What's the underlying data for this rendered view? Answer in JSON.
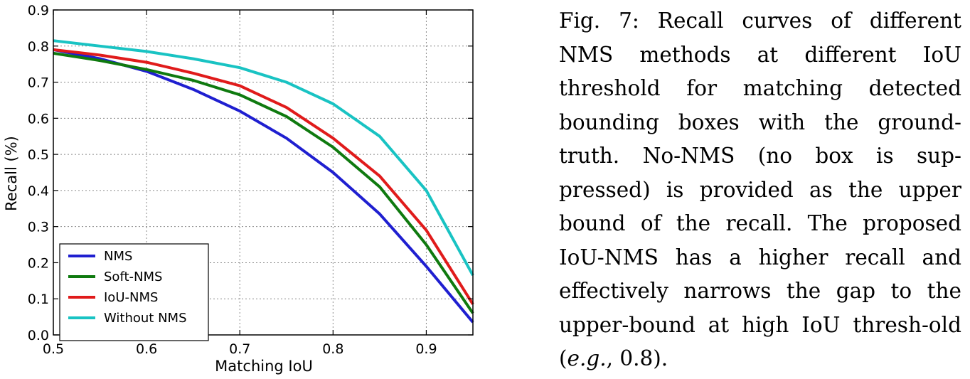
{
  "chart_data": {
    "type": "line",
    "xlabel": "Matching IoU",
    "ylabel": "Recall (%)",
    "xlim": [
      0.5,
      0.95
    ],
    "ylim": [
      0.0,
      0.9
    ],
    "grid": true,
    "legend_position": "lower-left",
    "xticks": [
      "0.5",
      "0.6",
      "0.7",
      "0.8",
      "0.9"
    ],
    "yticks": [
      "0.0",
      "0.1",
      "0.2",
      "0.3",
      "0.4",
      "0.5",
      "0.6",
      "0.7",
      "0.8",
      "0.9"
    ],
    "x": [
      0.5,
      0.55,
      0.6,
      0.65,
      0.7,
      0.75,
      0.8,
      0.85,
      0.9,
      0.95
    ],
    "series": [
      {
        "name": "NMS",
        "color": "#1f1fd0",
        "values": [
          0.79,
          0.765,
          0.73,
          0.68,
          0.62,
          0.545,
          0.45,
          0.335,
          0.19,
          0.035
        ]
      },
      {
        "name": "Soft-NMS",
        "color": "#0f7a0f",
        "values": [
          0.78,
          0.76,
          0.735,
          0.705,
          0.665,
          0.605,
          0.52,
          0.41,
          0.25,
          0.06
        ]
      },
      {
        "name": "IoU-NMS",
        "color": "#e01b1b",
        "values": [
          0.79,
          0.775,
          0.755,
          0.725,
          0.69,
          0.63,
          0.545,
          0.44,
          0.29,
          0.085
        ]
      },
      {
        "name": "Without NMS",
        "color": "#19c3c3",
        "values": [
          0.815,
          0.8,
          0.785,
          0.765,
          0.74,
          0.7,
          0.64,
          0.55,
          0.4,
          0.165
        ]
      }
    ]
  },
  "caption": {
    "label": "Fig. 7:",
    "text_1": " Recall curves of different NMS methods at different IoU threshold for matching detected bounding boxes with the ground-truth. No-NMS (no box is sup-pressed) is provided as the upper bound of the recall. The proposed IoU-NMS has a higher recall and effectively narrows the gap to the upper-bound at high IoU thresh-old (",
    "eg": "e.g.",
    "text_2": ", 0.8)."
  }
}
